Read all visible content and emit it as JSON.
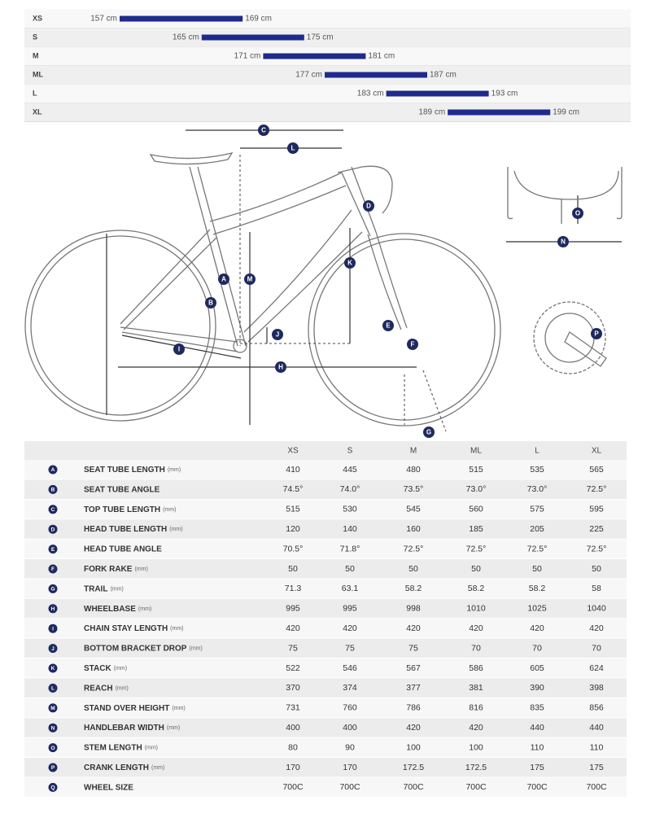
{
  "size_chart": {
    "rows": [
      {
        "size": "XS",
        "min": "157 cm",
        "max": "169 cm"
      },
      {
        "size": "S",
        "min": "165 cm",
        "max": "175 cm"
      },
      {
        "size": "M",
        "min": "171 cm",
        "max": "181 cm"
      },
      {
        "size": "ML",
        "min": "177 cm",
        "max": "187 cm"
      },
      {
        "size": "L",
        "min": "183 cm",
        "max": "193 cm"
      },
      {
        "size": "XL",
        "min": "189 cm",
        "max": "199 cm"
      }
    ]
  },
  "diagram": {
    "markers": [
      "C",
      "L",
      "D",
      "O",
      "N",
      "M",
      "K",
      "A",
      "B",
      "J",
      "E",
      "F",
      "I",
      "H",
      "G",
      "P"
    ]
  },
  "table": {
    "columns": [
      "XS",
      "S",
      "M",
      "ML",
      "L",
      "XL"
    ],
    "rows": [
      {
        "letter": "A",
        "name": "SEAT TUBE LENGTH",
        "unit": "(mm)",
        "values": [
          "410",
          "445",
          "480",
          "515",
          "535",
          "565"
        ]
      },
      {
        "letter": "B",
        "name": "SEAT TUBE ANGLE",
        "values": [
          "74.5°",
          "74.0°",
          "73.5°",
          "73.0°",
          "73.0°",
          "72.5°"
        ]
      },
      {
        "letter": "C",
        "name": "TOP TUBE LENGTH",
        "unit": "(mm)",
        "values": [
          "515",
          "530",
          "545",
          "560",
          "575",
          "595"
        ]
      },
      {
        "letter": "D",
        "name": "HEAD TUBE LENGTH",
        "unit": "(mm)",
        "values": [
          "120",
          "140",
          "160",
          "185",
          "205",
          "225"
        ]
      },
      {
        "letter": "E",
        "name": "HEAD TUBE ANGLE",
        "values": [
          "70.5°",
          "71.8°",
          "72.5°",
          "72.5°",
          "72.5°",
          "72.5°"
        ]
      },
      {
        "letter": "F",
        "name": "FORK RAKE",
        "unit": "(mm)",
        "values": [
          "50",
          "50",
          "50",
          "50",
          "50",
          "50"
        ]
      },
      {
        "letter": "G",
        "name": "TRAIL",
        "unit": "(mm)",
        "values": [
          "71.3",
          "63.1",
          "58.2",
          "58.2",
          "58.2",
          "58"
        ]
      },
      {
        "letter": "H",
        "name": "WHEELBASE",
        "unit": "(mm)",
        "values": [
          "995",
          "995",
          "998",
          "1010",
          "1025",
          "1040"
        ]
      },
      {
        "letter": "I",
        "name": "CHAIN STAY LENGTH",
        "unit": "(mm)",
        "values": [
          "420",
          "420",
          "420",
          "420",
          "420",
          "420"
        ]
      },
      {
        "letter": "J",
        "name": "BOTTOM BRACKET DROP",
        "unit": "(mm)",
        "values": [
          "75",
          "75",
          "75",
          "70",
          "70",
          "70"
        ]
      },
      {
        "letter": "K",
        "name": "STACK",
        "unit": "(mm)",
        "values": [
          "522",
          "546",
          "567",
          "586",
          "605",
          "624"
        ]
      },
      {
        "letter": "L",
        "name": "REACH",
        "unit": "(mm)",
        "values": [
          "370",
          "374",
          "377",
          "381",
          "390",
          "398"
        ]
      },
      {
        "letter": "M",
        "name": "STAND OVER HEIGHT",
        "unit": "(mm)",
        "values": [
          "731",
          "760",
          "786",
          "816",
          "835",
          "856"
        ]
      },
      {
        "letter": "N",
        "name": "HANDLEBAR WIDTH",
        "unit": "(mm)",
        "values": [
          "400",
          "400",
          "420",
          "420",
          "440",
          "440"
        ]
      },
      {
        "letter": "O",
        "name": "STEM LENGTH",
        "unit": "(mm)",
        "values": [
          "80",
          "90",
          "100",
          "100",
          "110",
          "110"
        ]
      },
      {
        "letter": "P",
        "name": "CRANK LENGTH",
        "unit": "(mm)",
        "values": [
          "170",
          "170",
          "172.5",
          "172.5",
          "175",
          "175"
        ]
      },
      {
        "letter": "Q",
        "name": "WHEEL SIZE",
        "values": [
          "700C",
          "700C",
          "700C",
          "700C",
          "700C",
          "700C"
        ]
      }
    ]
  }
}
